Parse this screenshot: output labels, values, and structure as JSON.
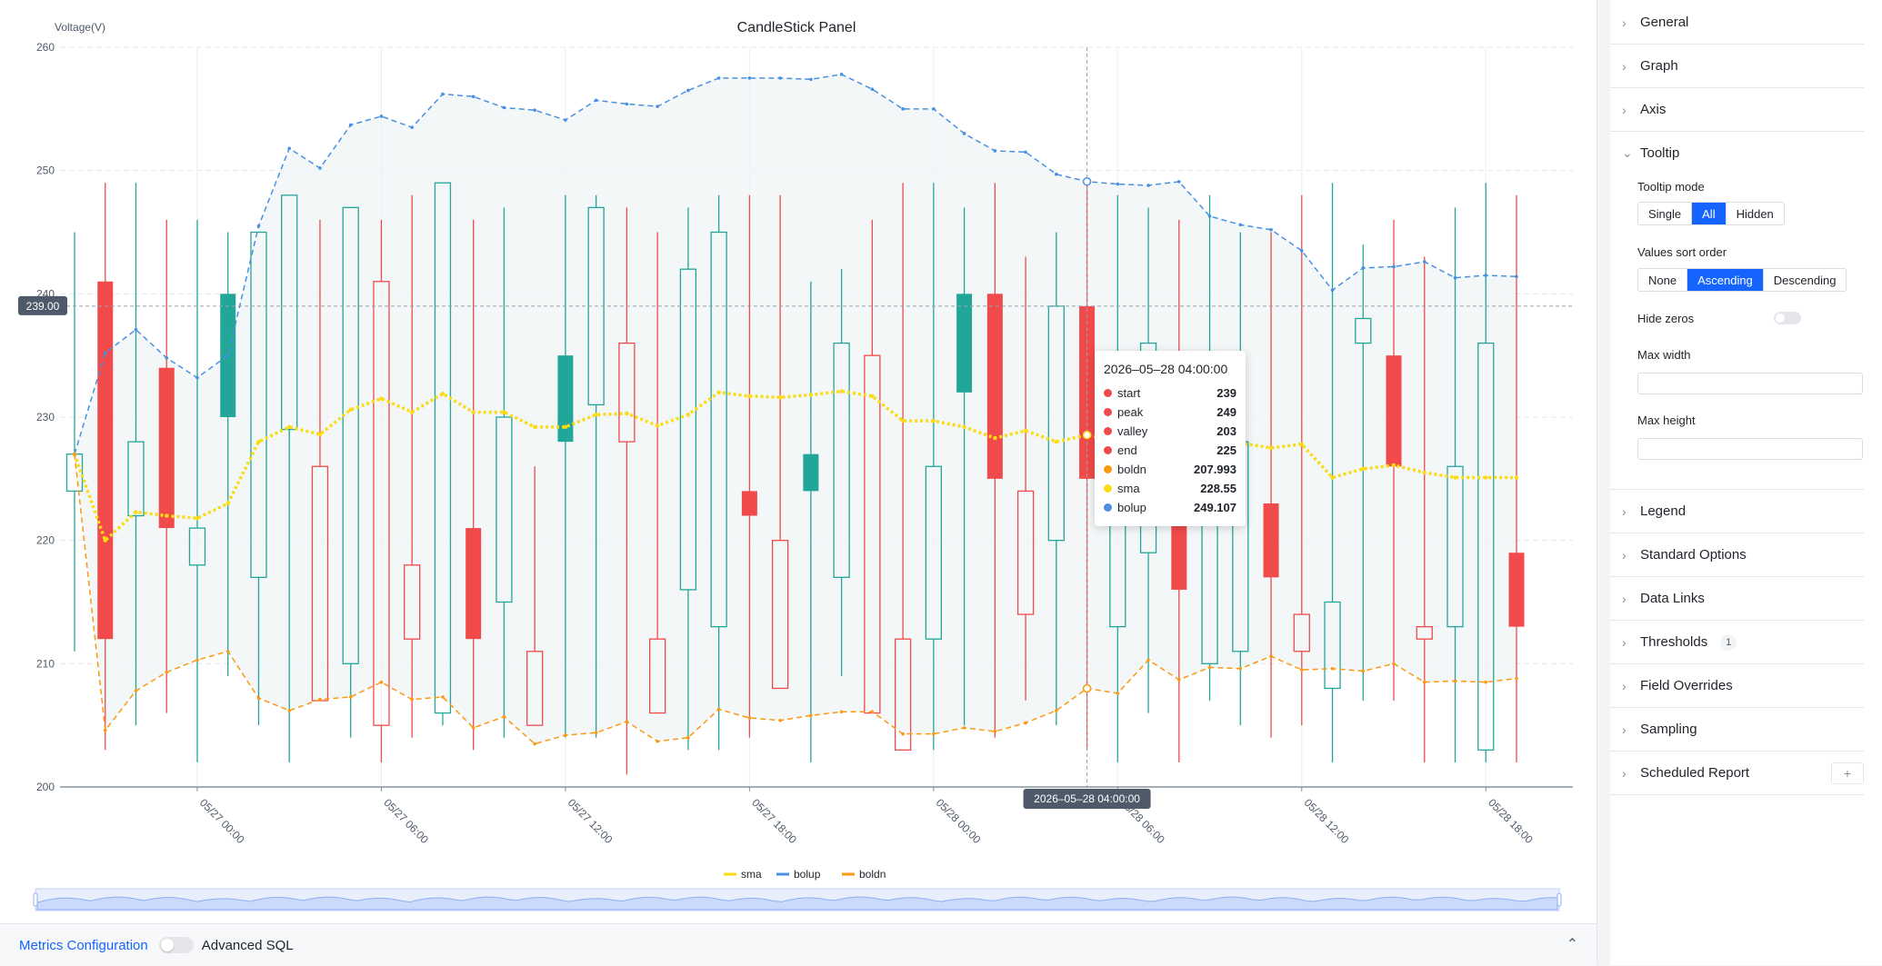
{
  "panel": {
    "title": "CandleStick Panel",
    "y_axis_label": "Voltage(V)",
    "crosshair_y_label": "239.00",
    "crosshair_x_label": "2026–05–28 04:00:00"
  },
  "legend": [
    {
      "name": "sma",
      "color": "#fadb14"
    },
    {
      "name": "bolup",
      "color": "#4a90e2"
    },
    {
      "name": "boldn",
      "color": "#fa9a14"
    }
  ],
  "tooltip": {
    "header": "2026–05–28 04:00:00",
    "rows": [
      {
        "name": "start",
        "value": "239",
        "color": "#f04a4a"
      },
      {
        "name": "peak",
        "value": "249",
        "color": "#f04a4a"
      },
      {
        "name": "valley",
        "value": "203",
        "color": "#f04a4a"
      },
      {
        "name": "end",
        "value": "225",
        "color": "#f04a4a"
      },
      {
        "name": "boldn",
        "value": "207.993",
        "color": "#fa9a14"
      },
      {
        "name": "sma",
        "value": "228.55",
        "color": "#fadb14"
      },
      {
        "name": "bolup",
        "value": "249.107",
        "color": "#4a90e2"
      }
    ]
  },
  "chart_data": {
    "type": "candlestick",
    "title": "CandleStick Panel",
    "ylabel": "Voltage(V)",
    "ylim": [
      200,
      260
    ],
    "y_ticks": [
      "200",
      "210",
      "220",
      "230",
      "240",
      "250",
      "260"
    ],
    "x_ticks": [
      "05/27 00:00",
      "05/27 06:00",
      "05/27 12:00",
      "05/27 18:00",
      "05/28 00:00",
      "05/28 06:00",
      "05/28 12:00",
      "05/28 18:00"
    ],
    "up_color": "#23a69a",
    "down_color": "#f04a4a",
    "candles": [
      {
        "o": 224,
        "h": 245,
        "l": 211,
        "c": 227,
        "style": "hollow",
        "dir": "up"
      },
      {
        "o": 241,
        "h": 249,
        "l": 203,
        "c": 212,
        "style": "filled",
        "dir": "down"
      },
      {
        "o": 222,
        "h": 249,
        "l": 205,
        "c": 228,
        "style": "hollow",
        "dir": "up"
      },
      {
        "o": 234,
        "h": 246,
        "l": 206,
        "c": 221,
        "style": "filled",
        "dir": "down"
      },
      {
        "o": 218,
        "h": 246,
        "l": 202,
        "c": 221,
        "style": "hollow",
        "dir": "up"
      },
      {
        "o": 230,
        "h": 245,
        "l": 209,
        "c": 240,
        "style": "filled",
        "dir": "up"
      },
      {
        "o": 217,
        "h": 245,
        "l": 205,
        "c": 245,
        "style": "hollow",
        "dir": "up"
      },
      {
        "o": 229,
        "h": 248,
        "l": 202,
        "c": 248,
        "style": "hollow",
        "dir": "up"
      },
      {
        "o": 226,
        "h": 246,
        "l": 207,
        "c": 207,
        "style": "hollow",
        "dir": "down"
      },
      {
        "o": 210,
        "h": 247,
        "l": 204,
        "c": 247,
        "style": "hollow",
        "dir": "up"
      },
      {
        "o": 241,
        "h": 246,
        "l": 202,
        "c": 205,
        "style": "hollow",
        "dir": "down"
      },
      {
        "o": 218,
        "h": 248,
        "l": 204,
        "c": 212,
        "style": "hollow",
        "dir": "down"
      },
      {
        "o": 206,
        "h": 249,
        "l": 205,
        "c": 249,
        "style": "hollow",
        "dir": "up"
      },
      {
        "o": 221,
        "h": 246,
        "l": 203,
        "c": 212,
        "style": "filled",
        "dir": "down"
      },
      {
        "o": 215,
        "h": 247,
        "l": 204,
        "c": 230,
        "style": "hollow",
        "dir": "up"
      },
      {
        "o": 211,
        "h": 226,
        "l": 205,
        "c": 205,
        "style": "hollow",
        "dir": "down"
      },
      {
        "o": 228,
        "h": 248,
        "l": 204,
        "c": 235,
        "style": "filled",
        "dir": "up"
      },
      {
        "o": 231,
        "h": 248,
        "l": 204,
        "c": 247,
        "style": "hollow",
        "dir": "up"
      },
      {
        "o": 236,
        "h": 247,
        "l": 201,
        "c": 228,
        "style": "hollow",
        "dir": "down"
      },
      {
        "o": 212,
        "h": 245,
        "l": 206,
        "c": 206,
        "style": "hollow",
        "dir": "down"
      },
      {
        "o": 216,
        "h": 247,
        "l": 203,
        "c": 242,
        "style": "hollow",
        "dir": "up"
      },
      {
        "o": 213,
        "h": 248,
        "l": 203,
        "c": 245,
        "style": "hollow",
        "dir": "up"
      },
      {
        "o": 224,
        "h": 248,
        "l": 204,
        "c": 222,
        "style": "filled",
        "dir": "down"
      },
      {
        "o": 220,
        "h": 248,
        "l": 208,
        "c": 208,
        "style": "hollow",
        "dir": "down"
      },
      {
        "o": 224,
        "h": 241,
        "l": 202,
        "c": 227,
        "style": "filled",
        "dir": "up"
      },
      {
        "o": 217,
        "h": 242,
        "l": 209,
        "c": 236,
        "style": "hollow",
        "dir": "up"
      },
      {
        "o": 235,
        "h": 246,
        "l": 206,
        "c": 206,
        "style": "hollow",
        "dir": "down"
      },
      {
        "o": 212,
        "h": 249,
        "l": 203,
        "c": 203,
        "style": "hollow",
        "dir": "down"
      },
      {
        "o": 212,
        "h": 249,
        "l": 203,
        "c": 226,
        "style": "hollow",
        "dir": "up"
      },
      {
        "o": 232,
        "h": 247,
        "l": 205,
        "c": 240,
        "style": "filled",
        "dir": "up"
      },
      {
        "o": 240,
        "h": 249,
        "l": 204,
        "c": 225,
        "style": "filled",
        "dir": "down"
      },
      {
        "o": 224,
        "h": 243,
        "l": 207,
        "c": 214,
        "style": "hollow",
        "dir": "down"
      },
      {
        "o": 220,
        "h": 245,
        "l": 205,
        "c": 239,
        "style": "hollow",
        "dir": "up"
      },
      {
        "o": 239,
        "h": 249,
        "l": 203,
        "c": 225,
        "style": "filled",
        "dir": "down"
      },
      {
        "o": 213,
        "h": 248,
        "l": 202,
        "c": 231,
        "style": "hollow",
        "dir": "up"
      },
      {
        "o": 219,
        "h": 247,
        "l": 206,
        "c": 236,
        "style": "hollow",
        "dir": "up"
      },
      {
        "o": 226,
        "h": 246,
        "l": 202,
        "c": 216,
        "style": "filled",
        "dir": "down"
      },
      {
        "o": 210,
        "h": 248,
        "l": 207,
        "c": 233,
        "style": "hollow",
        "dir": "up"
      },
      {
        "o": 211,
        "h": 245,
        "l": 205,
        "c": 228,
        "style": "hollow",
        "dir": "up"
      },
      {
        "o": 223,
        "h": 245,
        "l": 204,
        "c": 217,
        "style": "filled",
        "dir": "down"
      },
      {
        "o": 214,
        "h": 248,
        "l": 205,
        "c": 211,
        "style": "hollow",
        "dir": "down"
      },
      {
        "o": 208,
        "h": 249,
        "l": 202,
        "c": 215,
        "style": "hollow",
        "dir": "up"
      },
      {
        "o": 236,
        "h": 244,
        "l": 207,
        "c": 238,
        "style": "hollow",
        "dir": "up"
      },
      {
        "o": 235,
        "h": 246,
        "l": 207,
        "c": 226,
        "style": "filled",
        "dir": "down"
      },
      {
        "o": 213,
        "h": 243,
        "l": 202,
        "c": 212,
        "style": "hollow",
        "dir": "down"
      },
      {
        "o": 213,
        "h": 247,
        "l": 202,
        "c": 226,
        "style": "hollow",
        "dir": "up"
      },
      {
        "o": 203,
        "h": 249,
        "l": 202,
        "c": 236,
        "style": "hollow",
        "dir": "up"
      },
      {
        "o": 219,
        "h": 248,
        "l": 202,
        "c": 213,
        "style": "filled",
        "dir": "down"
      }
    ],
    "series": [
      {
        "name": "sma",
        "color": "#fadb14",
        "values": [
          227,
          220,
          222.3,
          222,
          221.8,
          223,
          228,
          229.2,
          228.6,
          230.6,
          231.5,
          230.4,
          231.9,
          230.4,
          230.4,
          229.2,
          229.2,
          230.2,
          230.3,
          229.3,
          230.2,
          232,
          231.7,
          231.6,
          231.8,
          232.1,
          231.7,
          229.7,
          229.7,
          229.2,
          228.3,
          228.9,
          228,
          228.55,
          228.1,
          228.3,
          227.7,
          227.4,
          227.9,
          227.5,
          227.8,
          225.1,
          225.8,
          226.1,
          225.5,
          225.1,
          225.1,
          225.1
        ]
      },
      {
        "name": "bolup",
        "color": "#4a90e2",
        "values": [
          227,
          235.2,
          237.1,
          234.8,
          233.2,
          235,
          245.5,
          251.8,
          250.2,
          253.7,
          254.4,
          253.5,
          256.2,
          256,
          255.1,
          254.9,
          254.1,
          255.7,
          255.4,
          255.2,
          256.5,
          257.5,
          257.5,
          257.5,
          257.4,
          257.8,
          256.6,
          255,
          255,
          253,
          251.6,
          251.5,
          249.7,
          249.107,
          248.9,
          248.8,
          249.1,
          246.3,
          245.6,
          245.2,
          243.5,
          240.3,
          242.1,
          242.2,
          242.6,
          241.3,
          241.5,
          241.4
        ]
      },
      {
        "name": "boldn",
        "color": "#fa9a14",
        "values": [
          227,
          204.6,
          207.8,
          209.3,
          210.3,
          211,
          207.2,
          206.2,
          207.1,
          207.3,
          208.5,
          207.1,
          207.3,
          204.8,
          205.7,
          203.5,
          204.2,
          204.4,
          205.3,
          203.7,
          204,
          206.3,
          205.6,
          205.4,
          205.8,
          206.1,
          206.1,
          204.3,
          204.3,
          204.8,
          204.5,
          205.2,
          206.2,
          207.993,
          207.6,
          210.3,
          208.7,
          209.7,
          209.6,
          210.6,
          209.5,
          209.6,
          209.4,
          210,
          208.5,
          208.6,
          208.5,
          208.8
        ]
      }
    ],
    "crosshair": {
      "x_index": 33,
      "y_value": 239
    },
    "legend_position": "bottom-center",
    "grid": true
  },
  "bottom_bar": {
    "metrics_link": "Metrics Configuration",
    "advanced_sql": "Advanced SQL",
    "collapse_icon": "chevron-up-icon"
  },
  "sidebar": {
    "general": "General",
    "graph": "Graph",
    "axis": "Axis",
    "tooltip": "Tooltip",
    "tooltip_mode_label": "Tooltip mode",
    "tooltip_mode_options": [
      "Single",
      "All",
      "Hidden"
    ],
    "tooltip_mode_selected": "All",
    "sort_order_label": "Values sort order",
    "sort_order_options": [
      "None",
      "Ascending",
      "Descending"
    ],
    "sort_order_selected": "Ascending",
    "hide_zeros_label": "Hide zeros",
    "max_width_label": "Max width",
    "max_height_label": "Max height",
    "legend": "Legend",
    "standard_options": "Standard Options",
    "data_links": "Data Links",
    "thresholds": "Thresholds",
    "thresholds_count": "1",
    "field_overrides": "Field Overrides",
    "sampling": "Sampling",
    "scheduled_report": "Scheduled Report",
    "add_label": "+"
  }
}
